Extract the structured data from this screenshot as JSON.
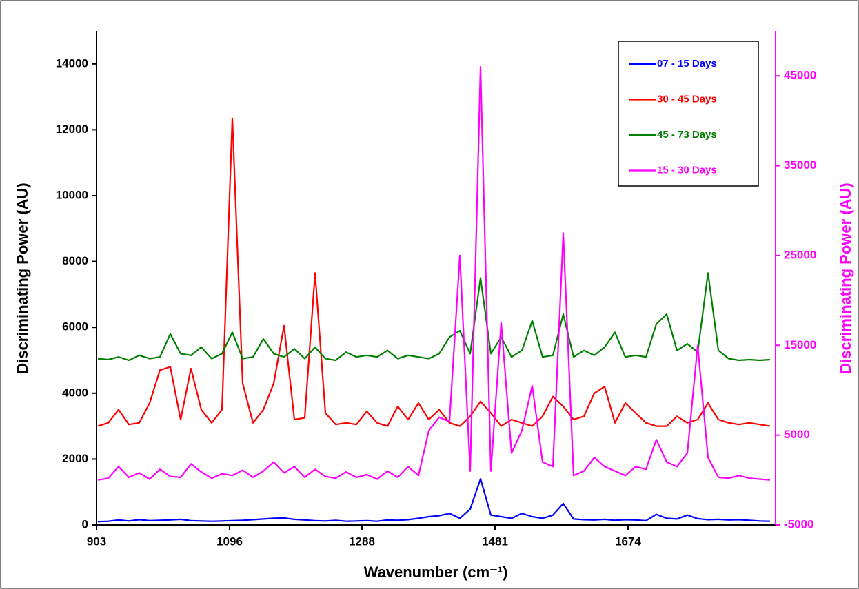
{
  "chart_data": {
    "type": "line",
    "x_label": "Wavenumber (cm⁻¹)",
    "y_label": "Discriminating Power (AU)",
    "y2_label": "Discriminating Power (AU)",
    "xlim": [
      903,
      1888
    ],
    "xticks": [
      903,
      1096,
      1288,
      1481,
      1674
    ],
    "ylim": [
      0,
      15000
    ],
    "yticks": [
      0,
      2000,
      4000,
      6000,
      8000,
      10000,
      12000,
      14000
    ],
    "y2lim": [
      -5000,
      50000
    ],
    "y2ticks": [
      -5000,
      5000,
      15000,
      25000,
      35000,
      45000
    ],
    "y2color": "#ff00ff",
    "grid": false,
    "legend": "upper right",
    "x": [
      905,
      920,
      935,
      950,
      965,
      980,
      995,
      1010,
      1025,
      1040,
      1055,
      1070,
      1085,
      1100,
      1115,
      1130,
      1145,
      1160,
      1175,
      1190,
      1205,
      1220,
      1235,
      1250,
      1265,
      1280,
      1295,
      1310,
      1325,
      1340,
      1355,
      1370,
      1385,
      1400,
      1415,
      1430,
      1445,
      1460,
      1475,
      1490,
      1505,
      1520,
      1535,
      1550,
      1565,
      1580,
      1595,
      1610,
      1625,
      1640,
      1655,
      1670,
      1685,
      1700,
      1715,
      1730,
      1745,
      1760,
      1775,
      1790,
      1805,
      1820,
      1835,
      1850,
      1865,
      1880
    ],
    "series": [
      {
        "name": "07 - 15 Days",
        "color": "#0000ff",
        "values": [
          100,
          110,
          150,
          120,
          160,
          130,
          140,
          150,
          170,
          130,
          120,
          110,
          120,
          130,
          140,
          160,
          180,
          200,
          210,
          170,
          150,
          130,
          120,
          140,
          110,
          120,
          130,
          110,
          150,
          140,
          160,
          200,
          250,
          280,
          350,
          200,
          480,
          1400,
          300,
          250,
          200,
          350,
          250,
          200,
          300,
          650,
          180,
          160,
          150,
          170,
          140,
          160,
          150,
          130,
          320,
          200,
          180,
          300,
          190,
          160,
          170,
          150,
          160,
          140,
          120,
          110
        ]
      },
      {
        "name": "30 - 45 Days",
        "color": "#ff0000",
        "values": [
          3000,
          3100,
          3500,
          3050,
          3100,
          3700,
          4700,
          4800,
          3200,
          4750,
          3500,
          3100,
          3500,
          12350,
          4300,
          3100,
          3500,
          4300,
          6050,
          3200,
          3250,
          7650,
          3400,
          3050,
          3100,
          3050,
          3450,
          3100,
          3000,
          3600,
          3200,
          3700,
          3200,
          3500,
          3100,
          3000,
          3300,
          3750,
          3400,
          3000,
          3200,
          3100,
          3000,
          3300,
          3900,
          3600,
          3200,
          3300,
          4000,
          4200,
          3100,
          3700,
          3400,
          3100,
          3000,
          3000,
          3300,
          3100,
          3200,
          3700,
          3200,
          3100,
          3050,
          3100,
          3050,
          3000
        ]
      },
      {
        "name": "45 - 73 Days",
        "color": "#008000",
        "values": [
          5050,
          5020,
          5100,
          5000,
          5150,
          5050,
          5100,
          5800,
          5200,
          5150,
          5400,
          5050,
          5200,
          5850,
          5050,
          5100,
          5650,
          5200,
          5100,
          5350,
          5050,
          5400,
          5050,
          5000,
          5250,
          5100,
          5150,
          5100,
          5300,
          5050,
          5150,
          5100,
          5050,
          5200,
          5700,
          5900,
          5200,
          7500,
          5200,
          5700,
          5100,
          5300,
          6200,
          5100,
          5150,
          6400,
          5100,
          5300,
          5150,
          5400,
          5850,
          5100,
          5150,
          5100,
          6100,
          6400,
          5300,
          5500,
          5250,
          7650,
          5300,
          5050,
          5000,
          5020,
          5000,
          5020
        ]
      },
      {
        "name": "15 - 30 Days",
        "color": "#ff00ff",
        "axis": "y2",
        "values": [
          0,
          200,
          1500,
          300,
          800,
          100,
          1200,
          400,
          300,
          1800,
          900,
          200,
          700,
          500,
          1100,
          300,
          1000,
          2000,
          800,
          1500,
          300,
          1200,
          400,
          200,
          900,
          300,
          600,
          100,
          1000,
          300,
          1500,
          500,
          5500,
          7000,
          6500,
          25000,
          1000,
          46000,
          1000,
          17500,
          3000,
          5500,
          10500,
          2000,
          1500,
          27500,
          500,
          1000,
          2500,
          1500,
          1000,
          500,
          1500,
          1200,
          4500,
          2000,
          1500,
          3000,
          15000,
          2500,
          300,
          200,
          500,
          200,
          100,
          0
        ]
      }
    ]
  }
}
